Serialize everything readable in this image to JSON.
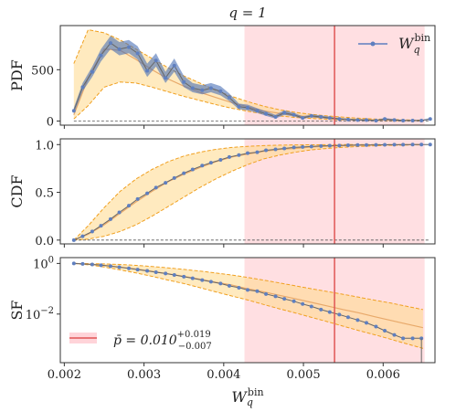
{
  "figure": {
    "title": "q = 1",
    "xlabel": "W_q^bin",
    "x_ticks": [
      0.002,
      0.003,
      0.004,
      0.005,
      0.006
    ],
    "x_tick_labels": [
      "0.002",
      "0.003",
      "0.004",
      "0.005",
      "0.006"
    ],
    "xlim": [
      0.00195,
      0.00665
    ],
    "shaded_region": [
      0.00426,
      0.00652
    ],
    "vline_x": 0.00539,
    "colors": {
      "data": "#5f7fbf",
      "data_band": "#4a6fb5",
      "fit_band": "#ffd98a",
      "fit_edge": "#f0a020",
      "fit_line": "#e8a96a",
      "region": "#ffc9cf",
      "vline": "#e05555"
    }
  },
  "chart_data": [
    {
      "type": "line",
      "ylabel": "PDF",
      "ylim": [
        -40,
        930
      ],
      "y_ticks": [
        0,
        500
      ],
      "y_tick_labels": [
        "0",
        "500"
      ],
      "legend": {
        "label": "W_q^bin",
        "placement": "top-right"
      },
      "series": [
        {
          "name": "W_q^bin",
          "x": [
            0.00212,
            0.00223,
            0.00235,
            0.00246,
            0.00258,
            0.00269,
            0.00281,
            0.00292,
            0.00304,
            0.00315,
            0.00327,
            0.00338,
            0.0035,
            0.00361,
            0.00373,
            0.00384,
            0.00396,
            0.00407,
            0.00419,
            0.0043,
            0.00442,
            0.00453,
            0.00465,
            0.00476,
            0.00488,
            0.00499,
            0.0051,
            0.00522,
            0.00533,
            0.00545,
            0.00556,
            0.00568,
            0.00579,
            0.00591,
            0.00602,
            0.00614,
            0.00625,
            0.00637,
            0.00648,
            0.00659
          ],
          "values": [
            100,
            330,
            480,
            640,
            760,
            700,
            720,
            660,
            490,
            590,
            420,
            540,
            380,
            320,
            300,
            320,
            290,
            230,
            140,
            130,
            100,
            70,
            40,
            80,
            60,
            30,
            50,
            40,
            30,
            20,
            15,
            10,
            10,
            5,
            20,
            10,
            5,
            5,
            5,
            20
          ],
          "band_low": [
            70,
            290,
            430,
            580,
            700,
            640,
            660,
            600,
            430,
            530,
            370,
            480,
            330,
            280,
            260,
            280,
            250,
            195,
            115,
            105,
            80,
            50,
            25,
            60,
            45,
            20,
            38,
            28,
            20,
            12,
            8,
            4,
            4,
            1,
            12,
            4,
            1,
            1,
            1,
            12
          ],
          "band_high": [
            130,
            370,
            530,
            700,
            830,
            770,
            790,
            730,
            560,
            660,
            480,
            610,
            440,
            370,
            350,
            370,
            340,
            270,
            170,
            160,
            125,
            95,
            60,
            105,
            80,
            45,
            65,
            55,
            42,
            30,
            24,
            18,
            18,
            10,
            30,
            18,
            10,
            10,
            10,
            30
          ]
        }
      ],
      "fit": {
        "x": [
          0.00212,
          0.0023,
          0.0025,
          0.0027,
          0.0029,
          0.0031,
          0.0033,
          0.0035,
          0.0037,
          0.0039,
          0.0041,
          0.0043,
          0.0045,
          0.0047,
          0.0049,
          0.0051,
          0.0053,
          0.0055,
          0.0057,
          0.0059,
          0.0061,
          0.0063,
          0.0065
        ],
        "center": [
          60,
          420,
          700,
          690,
          600,
          500,
          410,
          340,
          280,
          230,
          180,
          140,
          100,
          75,
          55,
          40,
          30,
          20,
          15,
          10,
          7,
          5,
          3
        ],
        "low": [
          20,
          150,
          330,
          380,
          370,
          330,
          285,
          240,
          200,
          160,
          125,
          95,
          70,
          50,
          35,
          25,
          18,
          12,
          8,
          5,
          3,
          2,
          1
        ],
        "high": [
          560,
          890,
          860,
          790,
          700,
          610,
          520,
          440,
          370,
          300,
          240,
          190,
          145,
          110,
          85,
          65,
          50,
          38,
          28,
          20,
          15,
          11,
          8
        ]
      },
      "baseline": 0
    },
    {
      "type": "line",
      "ylabel": "CDF",
      "ylim": [
        -0.04,
        1.06
      ],
      "y_ticks": [
        0.0,
        0.5,
        1.0
      ],
      "y_tick_labels": [
        "0.0",
        "0.5",
        "1.0"
      ],
      "series": [
        {
          "name": "W_q^bin",
          "x": [
            0.00212,
            0.00223,
            0.00235,
            0.00246,
            0.00258,
            0.00269,
            0.00281,
            0.00292,
            0.00304,
            0.00315,
            0.00327,
            0.00338,
            0.0035,
            0.00361,
            0.00373,
            0.00384,
            0.00396,
            0.00407,
            0.00419,
            0.0043,
            0.00442,
            0.00453,
            0.00465,
            0.00476,
            0.00488,
            0.00499,
            0.0051,
            0.00522,
            0.00533,
            0.00545,
            0.00556,
            0.00568,
            0.00579,
            0.00591,
            0.00602,
            0.00614,
            0.00625,
            0.00637,
            0.00648,
            0.00659
          ],
          "values": [
            0.0,
            0.04,
            0.09,
            0.15,
            0.22,
            0.29,
            0.36,
            0.43,
            0.49,
            0.55,
            0.6,
            0.65,
            0.7,
            0.74,
            0.78,
            0.81,
            0.84,
            0.87,
            0.89,
            0.91,
            0.92,
            0.94,
            0.95,
            0.96,
            0.97,
            0.975,
            0.98,
            0.985,
            0.988,
            0.99,
            0.993,
            0.995,
            0.996,
            0.997,
            0.998,
            0.999,
            0.999,
            1.0,
            1.0,
            1.0
          ]
        }
      ],
      "fit": {
        "x": [
          0.00212,
          0.0023,
          0.0025,
          0.0027,
          0.0029,
          0.0031,
          0.0033,
          0.0035,
          0.0037,
          0.0039,
          0.0041,
          0.0043,
          0.0045,
          0.0047,
          0.0049,
          0.0051,
          0.0053,
          0.0055,
          0.0057,
          0.0059,
          0.0061,
          0.0063,
          0.0065
        ],
        "center": [
          0.0,
          0.06,
          0.16,
          0.28,
          0.4,
          0.51,
          0.61,
          0.69,
          0.76,
          0.82,
          0.87,
          0.9,
          0.93,
          0.95,
          0.96,
          0.975,
          0.983,
          0.989,
          0.993,
          0.996,
          0.998,
          0.999,
          1.0
        ],
        "low": [
          0.0,
          0.01,
          0.04,
          0.09,
          0.16,
          0.25,
          0.35,
          0.45,
          0.55,
          0.64,
          0.72,
          0.79,
          0.85,
          0.89,
          0.92,
          0.945,
          0.96,
          0.972,
          0.98,
          0.987,
          0.992,
          0.995,
          0.998
        ],
        "high": [
          0.0,
          0.15,
          0.34,
          0.51,
          0.64,
          0.74,
          0.82,
          0.88,
          0.92,
          0.95,
          0.97,
          0.982,
          0.989,
          0.994,
          0.997,
          0.998,
          0.999,
          1.0,
          1.0,
          1.0,
          1.0,
          1.0,
          1.0
        ]
      },
      "baseline": 0
    },
    {
      "type": "line",
      "ylabel": "SF",
      "yscale": "log",
      "ylim": [
        0.00012,
        1.7
      ],
      "y_ticks": [
        1.0,
        0.01
      ],
      "y_tick_labels": [
        "10^0",
        "10^-2"
      ],
      "legend": {
        "label": "p̄ = 0.010 +0.019 −0.007",
        "placement": "bottom-left"
      },
      "series": [
        {
          "name": "W_q^bin",
          "x": [
            0.00212,
            0.00223,
            0.00235,
            0.00246,
            0.00258,
            0.00269,
            0.00281,
            0.00292,
            0.00304,
            0.00315,
            0.00327,
            0.00338,
            0.0035,
            0.00361,
            0.00373,
            0.00384,
            0.00396,
            0.00407,
            0.00419,
            0.0043,
            0.00442,
            0.00453,
            0.00465,
            0.00476,
            0.00488,
            0.00499,
            0.0051,
            0.00522,
            0.00533,
            0.00545,
            0.00556,
            0.00568,
            0.00579,
            0.00591,
            0.00602,
            0.00614,
            0.00625,
            0.00637,
            0.00648
          ],
          "values": [
            1.0,
            0.96,
            0.91,
            0.85,
            0.78,
            0.71,
            0.64,
            0.57,
            0.51,
            0.45,
            0.4,
            0.35,
            0.3,
            0.26,
            0.22,
            0.19,
            0.16,
            0.13,
            0.11,
            0.09,
            0.08,
            0.062,
            0.05,
            0.04,
            0.032,
            0.025,
            0.02,
            0.015,
            0.012,
            0.0095,
            0.0075,
            0.0058,
            0.0045,
            0.0032,
            0.0022,
            0.0015,
            0.0011,
            0.0011,
            0.0011
          ]
        }
      ],
      "fit": {
        "x": [
          0.00212,
          0.0023,
          0.0025,
          0.0027,
          0.0029,
          0.0031,
          0.0033,
          0.0035,
          0.0037,
          0.0039,
          0.0041,
          0.0043,
          0.0045,
          0.0047,
          0.0049,
          0.0051,
          0.0053,
          0.0055,
          0.0057,
          0.0059,
          0.0061,
          0.0063,
          0.0065
        ],
        "center": [
          1.0,
          0.94,
          0.84,
          0.72,
          0.6,
          0.49,
          0.39,
          0.31,
          0.24,
          0.18,
          0.14,
          0.1,
          0.075,
          0.055,
          0.04,
          0.029,
          0.021,
          0.015,
          0.011,
          0.0078,
          0.0056,
          0.004,
          0.0029
        ],
        "low": [
          1.0,
          0.88,
          0.72,
          0.56,
          0.42,
          0.31,
          0.22,
          0.16,
          0.11,
          0.075,
          0.052,
          0.036,
          0.024,
          0.016,
          0.011,
          0.0074,
          0.005,
          0.0033,
          0.0022,
          0.0015,
          0.001,
          0.00066,
          0.00044
        ],
        "high": [
          1.0,
          0.99,
          0.96,
          0.91,
          0.84,
          0.76,
          0.67,
          0.58,
          0.5,
          0.42,
          0.35,
          0.28,
          0.22,
          0.17,
          0.13,
          0.1,
          0.078,
          0.06,
          0.046,
          0.035,
          0.027,
          0.02,
          0.015
        ]
      },
      "vline_label": "p̄"
    }
  ]
}
